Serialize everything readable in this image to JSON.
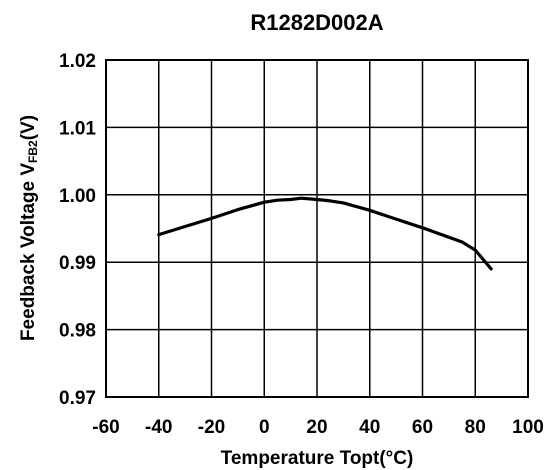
{
  "chart_data": {
    "type": "line",
    "title": "R1282D002A",
    "xlabel": "Temperature Topt(°C)",
    "ylabel_main": "Feedback Voltage V",
    "ylabel_sub": "FB2",
    "ylabel_unit": "(V)",
    "xlim": [
      -60,
      100
    ],
    "ylim": [
      0.97,
      1.02
    ],
    "x_ticks": [
      "-60",
      "-40",
      "-20",
      "0",
      "20",
      "40",
      "60",
      "80",
      "100"
    ],
    "y_ticks": [
      "1.02",
      "1.01",
      "1.00",
      "0.99",
      "0.98",
      "0.97"
    ],
    "x_tick_values": [
      -60,
      -40,
      -20,
      0,
      20,
      40,
      60,
      80,
      100
    ],
    "y_tick_values": [
      1.02,
      1.01,
      1.0,
      0.99,
      0.98,
      0.97
    ],
    "grid": true,
    "series": [
      {
        "x": [
          -40,
          -30,
          -20,
          -10,
          0,
          5,
          10,
          14,
          20,
          25,
          30,
          40,
          50,
          60,
          70,
          75,
          80,
          86
        ],
        "y": [
          0.9941,
          0.9953,
          0.9965,
          0.9978,
          0.9989,
          0.9992,
          0.9993,
          0.9995,
          0.9993,
          0.9991,
          0.9988,
          0.9977,
          0.9964,
          0.9951,
          0.9937,
          0.993,
          0.9918,
          0.989
        ]
      }
    ]
  }
}
